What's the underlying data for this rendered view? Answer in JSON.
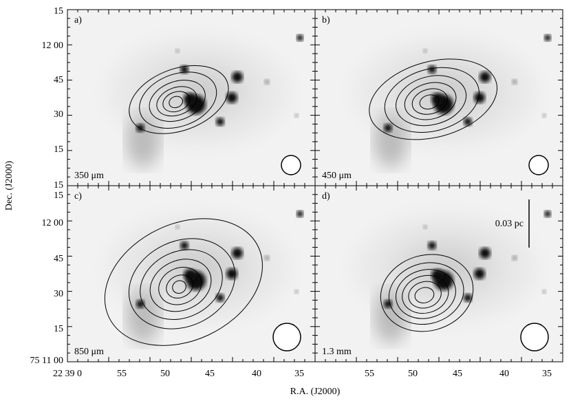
{
  "y_axis_label": "Dec. (J2000)",
  "x_axis_label": "R.A. (J2000)",
  "y_ticks_left": [
    "15",
    "12 00",
    "45",
    "30",
    "15",
    "15",
    "15",
    "12 00",
    "45",
    "30",
    "15",
    "75 11 00"
  ],
  "x_ticks_left": [
    "22 39 0",
    "55",
    "50",
    "45",
    "40",
    "35"
  ],
  "x_ticks_right": [
    "55",
    "50",
    "45",
    "40",
    "35"
  ],
  "panels": [
    {
      "label": "a)",
      "wavelength": "350 μm"
    },
    {
      "label": "b)",
      "wavelength": "450 μm"
    },
    {
      "label": "c)",
      "wavelength": "850 μm"
    },
    {
      "label": "d)",
      "wavelength": "1.3 mm"
    }
  ],
  "scale_bar": "0.03 pc"
}
